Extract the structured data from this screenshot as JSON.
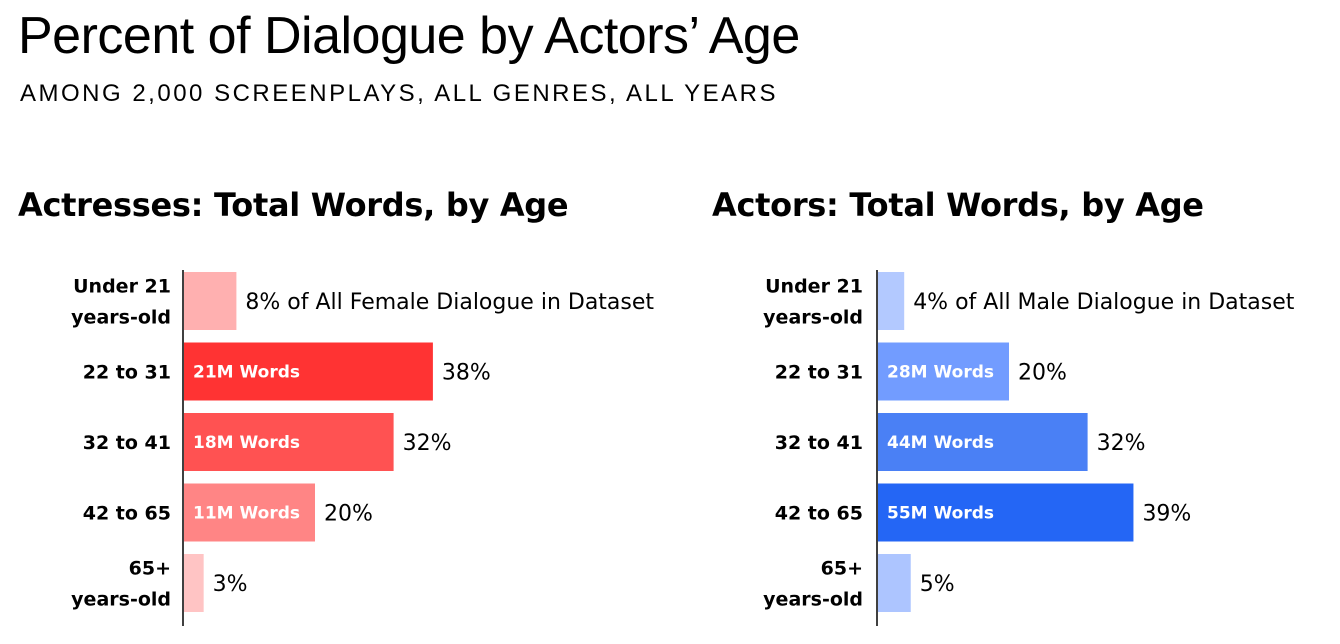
{
  "title": "Percent of Dialogue by Actors’ Age",
  "subtitle": "AMONG 2,000 SCREENPLAYS, ALL GENRES, ALL YEARS",
  "chart_data": [
    {
      "type": "bar",
      "orientation": "horizontal",
      "title": "Actresses: Total Words, by Age",
      "categories": [
        "Under 21 years-old",
        "22 to 31",
        "32 to 41",
        "42 to 65",
        "65+ years-old"
      ],
      "category_lines": [
        [
          "Under 21",
          "years-old"
        ],
        [
          "22 to 31"
        ],
        [
          "32 to 41"
        ],
        [
          "42 to 65"
        ],
        [
          "65+",
          "years-old"
        ]
      ],
      "values": [
        8,
        38,
        32,
        20,
        3
      ],
      "value_labels": [
        "8% of All Female Dialogue in Dataset",
        "38%",
        "32%",
        "20%",
        "3%"
      ],
      "inner_labels": [
        "",
        "21M Words",
        "18M Words",
        "11M Words",
        ""
      ],
      "colors": [
        "#ffb0b0",
        "#ff3333",
        "#ff5252",
        "#ff8585",
        "#ffc4c4"
      ],
      "unit": "percent"
    },
    {
      "type": "bar",
      "orientation": "horizontal",
      "title": "Actors: Total Words, by Age",
      "categories": [
        "Under 21 years-old",
        "22 to 31",
        "32 to 41",
        "42 to 65",
        "65+ years-old"
      ],
      "category_lines": [
        [
          "Under 21",
          "years-old"
        ],
        [
          "22 to 31"
        ],
        [
          "32 to 41"
        ],
        [
          "42 to 65"
        ],
        [
          "65+",
          "years-old"
        ]
      ],
      "values": [
        4,
        20,
        32,
        39,
        5
      ],
      "value_labels": [
        "4% of All Male Dialogue in Dataset",
        "20%",
        "32%",
        "39%",
        "5%"
      ],
      "inner_labels": [
        "",
        "28M Words",
        "44M Words",
        "55M Words",
        ""
      ],
      "colors": [
        "#b3c9ff",
        "#729cff",
        "#4a80f5",
        "#2466f5",
        "#adc5ff"
      ],
      "unit": "percent"
    }
  ]
}
